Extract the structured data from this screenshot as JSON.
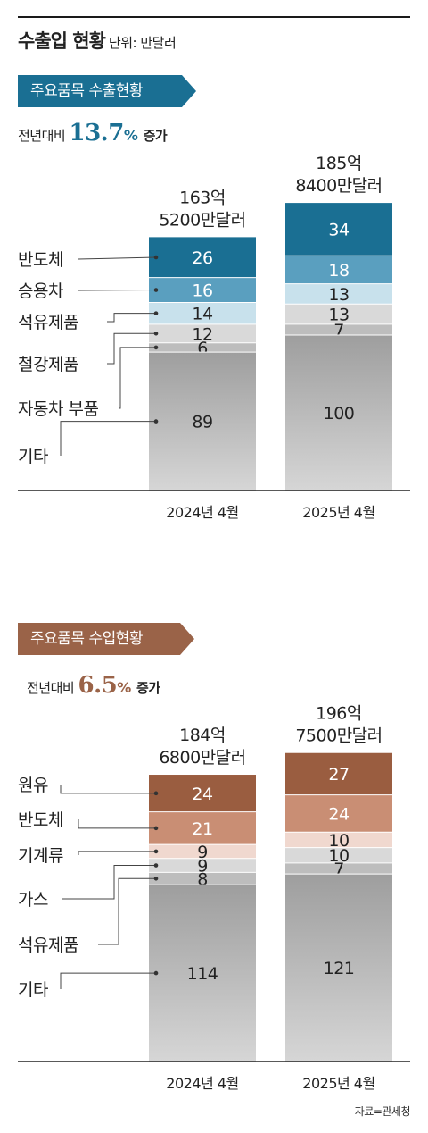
{
  "header": {
    "title": "수출입 현황",
    "unit": "단위: 만달러"
  },
  "export": {
    "banner": "주요품목 수출현황",
    "growth_prefix": "전년대비",
    "growth_value": "13.7",
    "growth_pct": "%",
    "growth_word": "증가",
    "color": "#1a6f93"
  },
  "import": {
    "banner": "주요품목 수입현황",
    "growth_prefix": "전년대비",
    "growth_value": "6.5",
    "growth_pct": "%",
    "growth_word": "증가",
    "color": "#9a6348"
  },
  "source": "자료=관세청",
  "chart_data": [
    {
      "type": "bar",
      "stacked": true,
      "categories": [
        "2024년 4월",
        "2025년 4월"
      ],
      "totals": [
        [
          "163억",
          "5200만달러"
        ],
        [
          "185억",
          "8400만달러"
        ]
      ],
      "series": [
        {
          "name": "반도체",
          "values": [
            26,
            34
          ],
          "color": "#1a6f93"
        },
        {
          "name": "승용차",
          "values": [
            16,
            18
          ],
          "color": "#5a9fbf"
        },
        {
          "name": "석유제품",
          "values": [
            14,
            13
          ],
          "color": "#c8e1ec"
        },
        {
          "name": "철강제품",
          "values": [
            12,
            13
          ],
          "color": "#d9d9d9"
        },
        {
          "name": "자동차 부품",
          "values": [
            6,
            7
          ],
          "color": "#bdbdbd"
        },
        {
          "name": "기타",
          "values": [
            89,
            100
          ],
          "color": "#a6a6a6"
        }
      ]
    },
    {
      "type": "bar",
      "stacked": true,
      "categories": [
        "2024년 4월",
        "2025년 4월"
      ],
      "totals": [
        [
          "184억",
          "6800만달러"
        ],
        [
          "196억",
          "7500만달러"
        ]
      ],
      "series": [
        {
          "name": "원유",
          "values": [
            24,
            27
          ],
          "color": "#9a5d40"
        },
        {
          "name": "반도체",
          "values": [
            21,
            24
          ],
          "color": "#c98e74"
        },
        {
          "name": "기계류",
          "values": [
            9,
            10
          ],
          "color": "#f0d8cf"
        },
        {
          "name": "가스",
          "values": [
            9,
            10
          ],
          "color": "#d9d9d9"
        },
        {
          "name": "석유제품",
          "values": [
            8,
            7
          ],
          "color": "#bdbdbd"
        },
        {
          "name": "기타",
          "values": [
            114,
            121
          ],
          "color": "#a6a6a6"
        }
      ]
    }
  ]
}
